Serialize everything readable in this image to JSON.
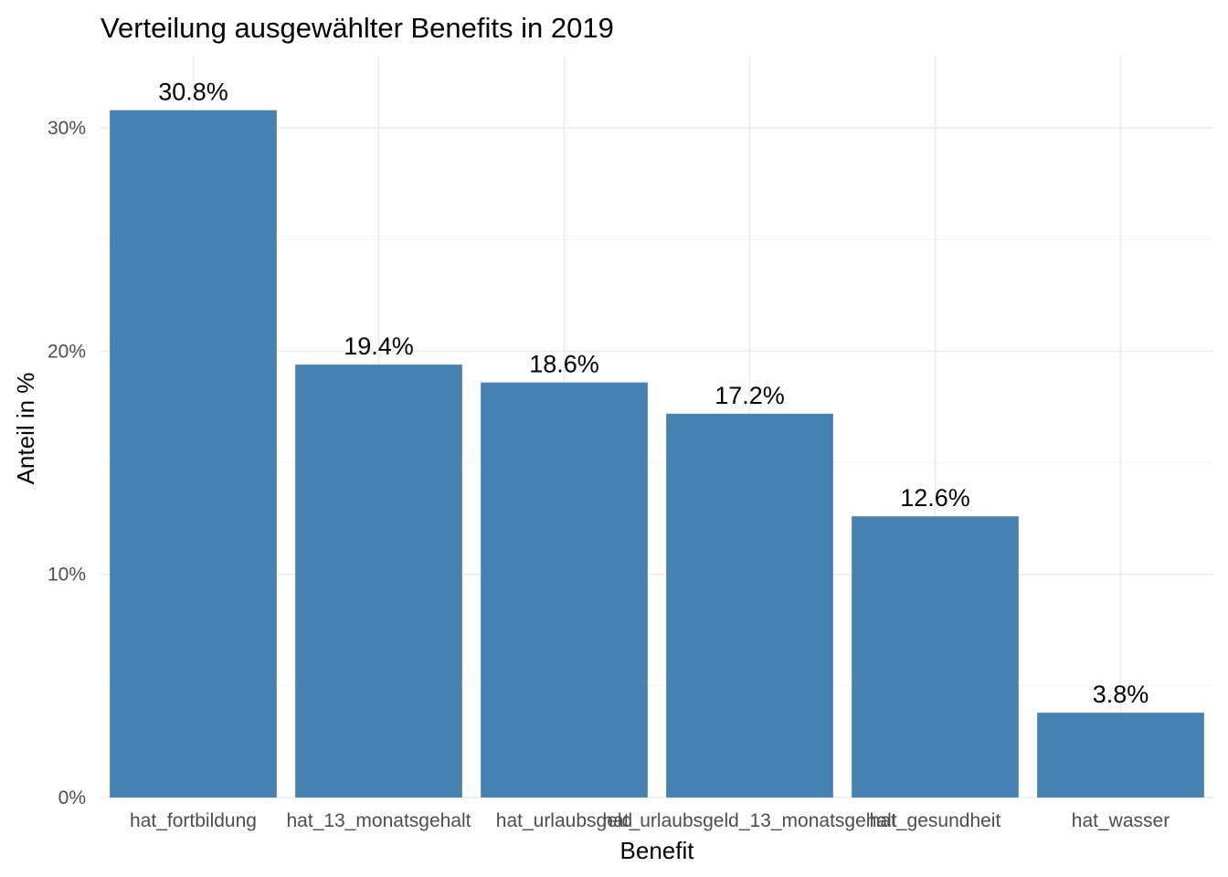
{
  "chart_data": {
    "type": "bar",
    "title": "Verteilung ausgewählter Benefits in 2019",
    "xlabel": "Benefit",
    "ylabel": "Anteil in %",
    "categories": [
      "hat_fortbildung",
      "hat_13_monatsgehalt",
      "hat_urlaubsgeld",
      "hat_urlaubsgeld_13_monatsgehalt",
      "hat_gesundheit",
      "hat_wasser"
    ],
    "values": [
      30.8,
      19.4,
      18.6,
      17.2,
      12.6,
      3.8
    ],
    "data_labels": [
      "30.8%",
      "19.4%",
      "18.6%",
      "17.2%",
      "12.6%",
      "3.8%"
    ],
    "y_ticks": [
      0,
      10,
      20,
      30
    ],
    "y_tick_labels": [
      "0%",
      "10%",
      "20%",
      "30%"
    ],
    "ylim": [
      0,
      33.2
    ],
    "grid": true,
    "legend": "none",
    "bar_color": "#4682B4"
  }
}
